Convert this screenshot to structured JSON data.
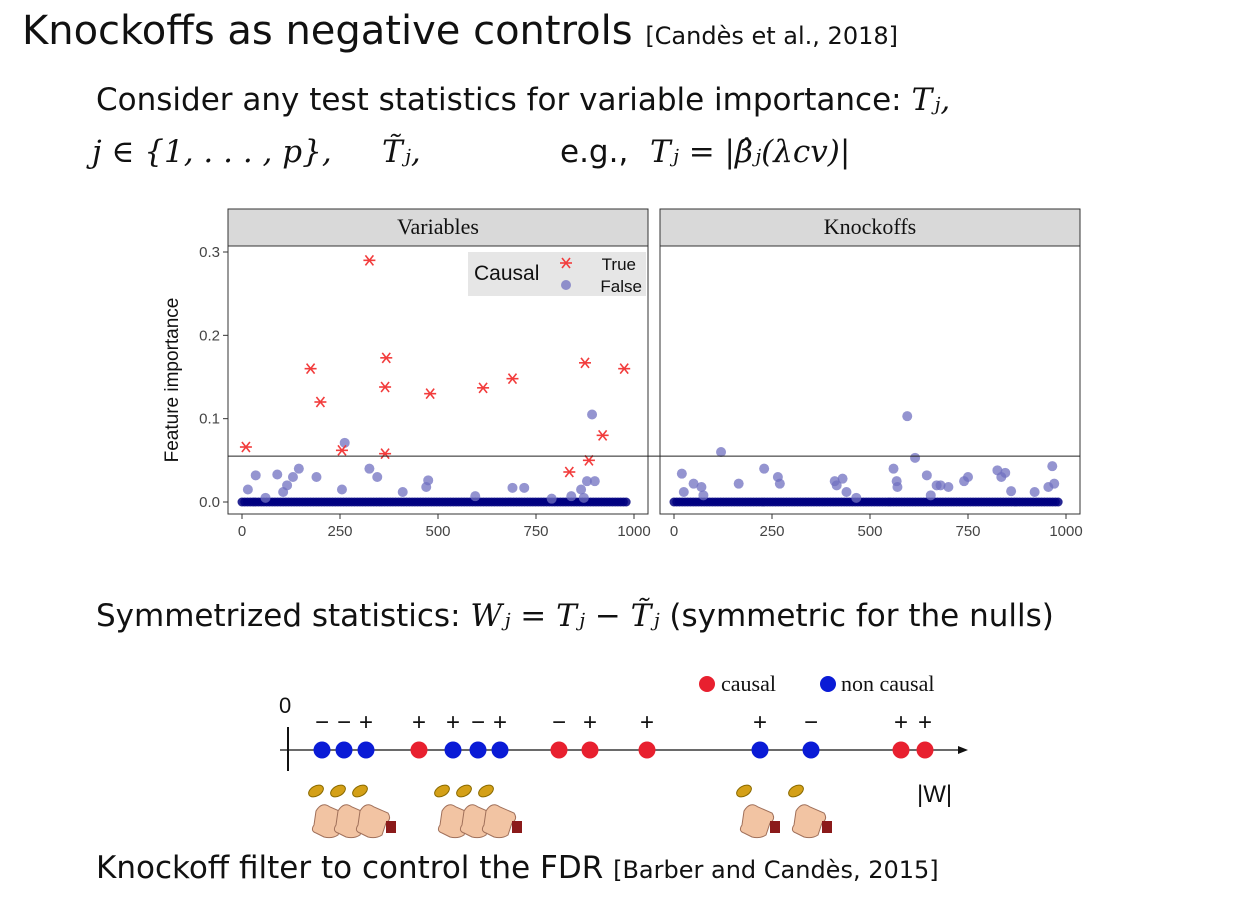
{
  "slide": {
    "title": "Knockoffs as negative controls",
    "title_cite": "[Candès et al., 2018]",
    "line1_text": "Consider any test statistics for variable importance:",
    "line1_math": "Tⱼ,",
    "line2_math_a": "j ∈ {1, . . . , p},",
    "line2_math_b": "T̃ⱼ,",
    "line2_eg": "e.g.,",
    "line2_math_c": "Tⱼ = |β̂ⱼ(λcv)|",
    "symm_text": "Symmetrized statistics:",
    "symm_math": "Wⱼ = Tⱼ − T̃ⱼ",
    "symm_note": "(symmetric for the nulls)",
    "footer_text": "Knockoff filter to control the FDR",
    "footer_cite": "[Barber and Candès, 2015]"
  },
  "chart_data": {
    "type": "scatter",
    "ylabel": "Feature importance",
    "ylim": [
      0,
      0.3
    ],
    "xlim": [
      0,
      1000
    ],
    "yticks": [
      "0.0",
      "0.1",
      "0.2",
      "0.3"
    ],
    "xticks": [
      "0",
      "250",
      "500",
      "750",
      "1000"
    ],
    "threshold": 0.055,
    "legend": {
      "title": "Causal",
      "true_label": "True",
      "false_label": "False"
    },
    "panels": [
      {
        "title": "Variables",
        "causal": [
          [
            10,
            0.066
          ],
          [
            175,
            0.16
          ],
          [
            200,
            0.12
          ],
          [
            255,
            0.062
          ],
          [
            325,
            0.29
          ],
          [
            365,
            0.138
          ],
          [
            368,
            0.173
          ],
          [
            365,
            0.058
          ],
          [
            480,
            0.13
          ],
          [
            615,
            0.137
          ],
          [
            690,
            0.148
          ],
          [
            835,
            0.036
          ],
          [
            875,
            0.167
          ],
          [
            885,
            0.05
          ],
          [
            920,
            0.08
          ],
          [
            975,
            0.16
          ]
        ],
        "noncausal": [
          [
            15,
            0.015
          ],
          [
            35,
            0.032
          ],
          [
            60,
            0.005
          ],
          [
            90,
            0.033
          ],
          [
            105,
            0.012
          ],
          [
            115,
            0.02
          ],
          [
            130,
            0.03
          ],
          [
            145,
            0.04
          ],
          [
            190,
            0.03
          ],
          [
            255,
            0.015
          ],
          [
            262,
            0.071
          ],
          [
            325,
            0.04
          ],
          [
            345,
            0.03
          ],
          [
            410,
            0.012
          ],
          [
            470,
            0.018
          ],
          [
            475,
            0.026
          ],
          [
            595,
            0.007
          ],
          [
            690,
            0.017
          ],
          [
            720,
            0.017
          ],
          [
            790,
            0.004
          ],
          [
            840,
            0.007
          ],
          [
            865,
            0.015
          ],
          [
            872,
            0.005
          ],
          [
            880,
            0.025
          ],
          [
            893,
            0.105
          ],
          [
            900,
            0.025
          ]
        ]
      },
      {
        "title": "Knockoffs",
        "causal": [],
        "noncausal": [
          [
            20,
            0.034
          ],
          [
            25,
            0.012
          ],
          [
            50,
            0.022
          ],
          [
            70,
            0.018
          ],
          [
            75,
            0.008
          ],
          [
            120,
            0.06
          ],
          [
            165,
            0.022
          ],
          [
            230,
            0.04
          ],
          [
            265,
            0.03
          ],
          [
            270,
            0.022
          ],
          [
            410,
            0.025
          ],
          [
            415,
            0.02
          ],
          [
            430,
            0.028
          ],
          [
            440,
            0.012
          ],
          [
            465,
            0.005
          ],
          [
            560,
            0.04
          ],
          [
            568,
            0.025
          ],
          [
            570,
            0.018
          ],
          [
            595,
            0.103
          ],
          [
            615,
            0.053
          ],
          [
            645,
            0.032
          ],
          [
            655,
            0.008
          ],
          [
            670,
            0.02
          ],
          [
            680,
            0.02
          ],
          [
            700,
            0.018
          ],
          [
            740,
            0.025
          ],
          [
            750,
            0.03
          ],
          [
            825,
            0.038
          ],
          [
            835,
            0.03
          ],
          [
            845,
            0.035
          ],
          [
            860,
            0.013
          ],
          [
            920,
            0.012
          ],
          [
            955,
            0.018
          ],
          [
            965,
            0.043
          ],
          [
            970,
            0.022
          ]
        ]
      }
    ]
  },
  "w_axis": {
    "zero_label": "0",
    "axis_label": "|W|",
    "legend": {
      "causal": "causal",
      "noncausal": "non causal"
    },
    "points": [
      {
        "type": "non",
        "sign": "−"
      },
      {
        "type": "non",
        "sign": "−"
      },
      {
        "type": "non",
        "sign": "+"
      },
      {
        "type": "causal",
        "sign": "+"
      },
      {
        "type": "non",
        "sign": "+"
      },
      {
        "type": "non",
        "sign": "−"
      },
      {
        "type": "non",
        "sign": "+"
      },
      {
        "type": "causal",
        "sign": "−"
      },
      {
        "type": "causal",
        "sign": "+"
      },
      {
        "type": "causal",
        "sign": "+"
      },
      {
        "type": "non",
        "sign": "+"
      },
      {
        "type": "non",
        "sign": "−"
      },
      {
        "type": "causal",
        "sign": "+"
      },
      {
        "type": "causal",
        "sign": "+"
      }
    ],
    "coin_groups": [
      3,
      3,
      1,
      1
    ],
    "colors": {
      "causal": "#e8202f",
      "noncausal": "#0a1bd6"
    }
  },
  "colors": {
    "causal_star": "#f23c3c",
    "noncausal_pt": "#7070c0",
    "zero_band": "#000080",
    "strip": "#d9d9d9"
  }
}
